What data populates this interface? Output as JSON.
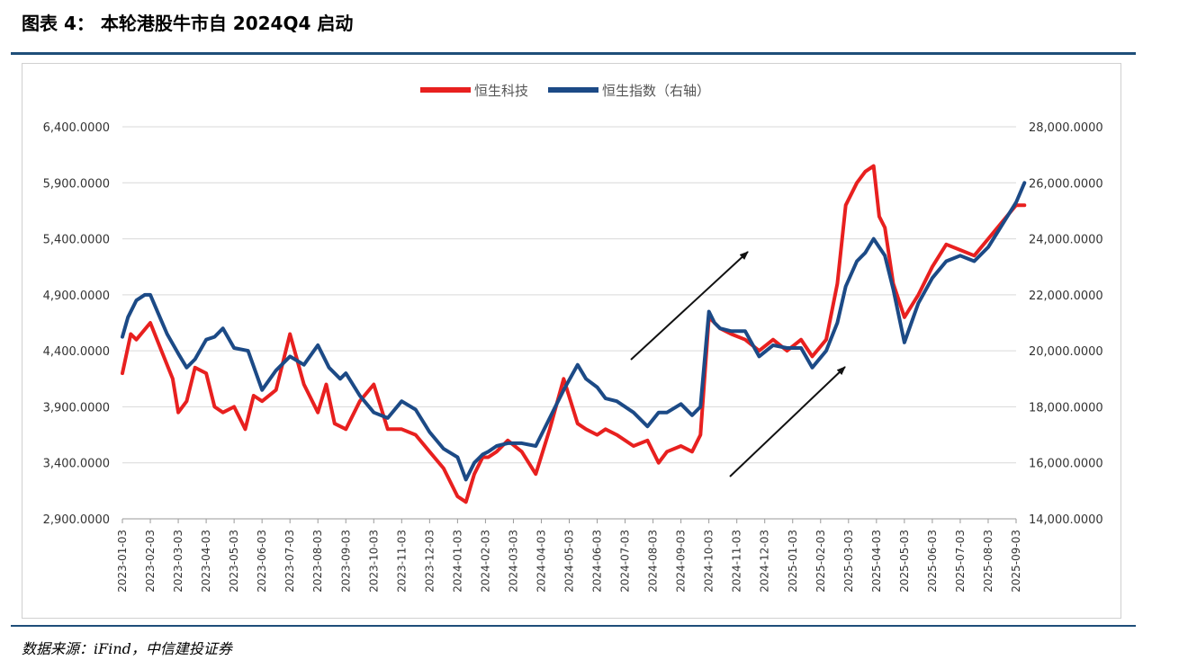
{
  "title": "图表 4：  本轮港股牛市自 2024Q4 启动",
  "source": "数据来源：iFind，中信建投证券",
  "chart_data": {
    "type": "line",
    "legend": {
      "placement": "top-center",
      "entries": [
        "恒生科技",
        "恒生指数（右轴）"
      ]
    },
    "grid": true,
    "y_left": {
      "ylim": [
        2900,
        6400
      ],
      "ticks": [
        "2,900.0000",
        "3,400.0000",
        "3,900.0000",
        "4,400.0000",
        "4,900.0000",
        "5,400.0000",
        "5,900.0000",
        "6,400.0000"
      ]
    },
    "y_right": {
      "ylim": [
        14000,
        28000
      ],
      "ticks": [
        "14,000.0000",
        "16,000.0000",
        "18,000.0000",
        "20,000.0000",
        "22,000.0000",
        "24,000.0000",
        "26,000.0000",
        "28,000.0000"
      ]
    },
    "x_ticks": [
      "2023-01-03",
      "2023-02-03",
      "2023-03-03",
      "2023-04-03",
      "2023-05-03",
      "2023-06-03",
      "2023-07-03",
      "2023-08-03",
      "2023-09-03",
      "2023-10-03",
      "2023-11-03",
      "2023-12-03",
      "2024-01-03",
      "2024-02-03",
      "2024-03-03",
      "2024-04-03",
      "2024-05-03",
      "2024-06-03",
      "2024-07-03",
      "2024-08-03",
      "2024-09-03",
      "2024-10-03",
      "2024-11-03",
      "2024-12-03",
      "2025-01-03",
      "2025-02-03",
      "2025-03-03",
      "2025-04-03",
      "2025-05-03",
      "2025-06-03",
      "2025-07-03",
      "2025-08-03",
      "2025-09-03"
    ],
    "series": [
      {
        "name": "恒生科技",
        "axis": "left",
        "color": "#e8201f",
        "months": [
          0,
          0.3,
          0.5,
          1,
          1.4,
          1.8,
          2,
          2.3,
          2.6,
          3,
          3.3,
          3.6,
          4,
          4.4,
          4.7,
          5,
          5.5,
          6,
          6.5,
          7,
          7.3,
          7.6,
          8,
          8.5,
          9,
          9.5,
          10,
          10.5,
          11,
          11.5,
          12,
          12.3,
          12.6,
          12.9,
          13.1,
          13.4,
          13.8,
          14.3,
          14.8,
          15.3,
          15.8,
          16.3,
          16.6,
          17,
          17.3,
          17.7,
          18.3,
          18.8,
          19.2,
          19.5,
          20,
          20.4,
          20.7,
          21,
          21.2,
          21.4,
          21.8,
          22.3,
          22.8,
          23.3,
          23.8,
          24.3,
          24.7,
          25.2,
          25.6,
          25.9,
          26.3,
          26.6,
          26.9,
          27.1,
          27.3,
          27.6,
          28,
          28.5,
          29,
          29.5,
          30,
          30.5,
          31,
          31.5,
          32,
          32.3
        ],
        "values": [
          4200,
          4550,
          4500,
          4650,
          4400,
          4150,
          3850,
          3950,
          4250,
          4200,
          3900,
          3850,
          3900,
          3700,
          4000,
          3950,
          4050,
          4550,
          4100,
          3850,
          4100,
          3750,
          3700,
          3950,
          4100,
          3700,
          3700,
          3650,
          3500,
          3350,
          3100,
          3050,
          3300,
          3450,
          3450,
          3500,
          3600,
          3500,
          3300,
          3700,
          4150,
          3750,
          3700,
          3650,
          3700,
          3650,
          3550,
          3600,
          3400,
          3500,
          3550,
          3500,
          3650,
          4700,
          4650,
          4600,
          4550,
          4500,
          4400,
          4500,
          4400,
          4500,
          4350,
          4500,
          5000,
          5700,
          5900,
          6000,
          6050,
          5600,
          5500,
          5000,
          4700,
          4900,
          5150,
          5350,
          5300,
          5250,
          5400,
          5550,
          5700,
          5700
        ]
      },
      {
        "name": "恒生指数（右轴）",
        "axis": "right",
        "color": "#1c4a86",
        "months": [
          0,
          0.2,
          0.5,
          0.8,
          1,
          1.3,
          1.6,
          2,
          2.3,
          2.6,
          3,
          3.3,
          3.6,
          4,
          4.5,
          5,
          5.5,
          6,
          6.5,
          7,
          7.4,
          7.8,
          8,
          8.5,
          9,
          9.5,
          10,
          10.5,
          11,
          11.5,
          12,
          12.3,
          12.6,
          12.9,
          13.1,
          13.4,
          13.8,
          14.3,
          14.8,
          15.3,
          15.8,
          16.3,
          16.6,
          17,
          17.3,
          17.7,
          18.3,
          18.8,
          19.2,
          19.5,
          20,
          20.4,
          20.7,
          21,
          21.2,
          21.4,
          21.8,
          22.3,
          22.8,
          23.3,
          23.8,
          24.3,
          24.7,
          25.2,
          25.6,
          25.9,
          26.3,
          26.6,
          26.9,
          27.1,
          27.3,
          27.6,
          28,
          28.5,
          29,
          29.5,
          30,
          30.5,
          31,
          31.5,
          32,
          32.3
        ],
        "values": [
          20500,
          21200,
          21800,
          22000,
          22000,
          21300,
          20600,
          19900,
          19400,
          19700,
          20400,
          20500,
          20800,
          20100,
          20000,
          18600,
          19300,
          19800,
          19500,
          20200,
          19400,
          19000,
          19200,
          18400,
          17800,
          17600,
          18200,
          17900,
          17100,
          16500,
          16200,
          15400,
          16000,
          16300,
          16400,
          16600,
          16700,
          16700,
          16600,
          17600,
          18600,
          19500,
          19000,
          18700,
          18300,
          18200,
          17800,
          17300,
          17800,
          17800,
          18100,
          17700,
          18000,
          21400,
          21000,
          20800,
          20700,
          20700,
          19800,
          20200,
          20100,
          20100,
          19400,
          20000,
          21000,
          22300,
          23200,
          23500,
          24000,
          23700,
          23400,
          22200,
          20300,
          21700,
          22600,
          23200,
          23400,
          23200,
          23700,
          24500,
          25300,
          26000
        ]
      }
    ],
    "annotations": [
      "arrow-up-right-1",
      "arrow-up-right-2"
    ]
  }
}
